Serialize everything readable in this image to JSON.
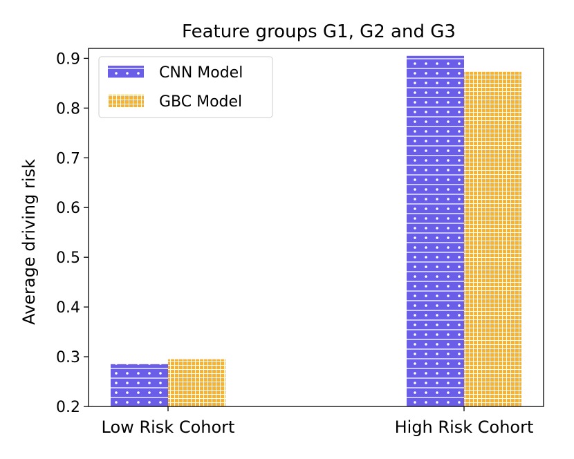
{
  "chart_data": {
    "type": "bar",
    "title": "Feature groups G1, G2 and G3",
    "xlabel": "",
    "ylabel": "Average driving risk",
    "categories": [
      "Low Risk Cohort",
      "High Risk Cohort"
    ],
    "series": [
      {
        "name": "CNN Model",
        "values": [
          0.285,
          0.905
        ],
        "color": "#6a5ee8",
        "pattern": "dots"
      },
      {
        "name": "GBC Model",
        "values": [
          0.295,
          0.873
        ],
        "color": "#f5b335",
        "pattern": "grid"
      }
    ],
    "ylim": [
      0.2,
      0.92
    ],
    "yticks": [
      "0.2",
      "0.3",
      "0.4",
      "0.5",
      "0.6",
      "0.7",
      "0.8",
      "0.9"
    ],
    "legend_position": "top-left",
    "grid": false
  }
}
